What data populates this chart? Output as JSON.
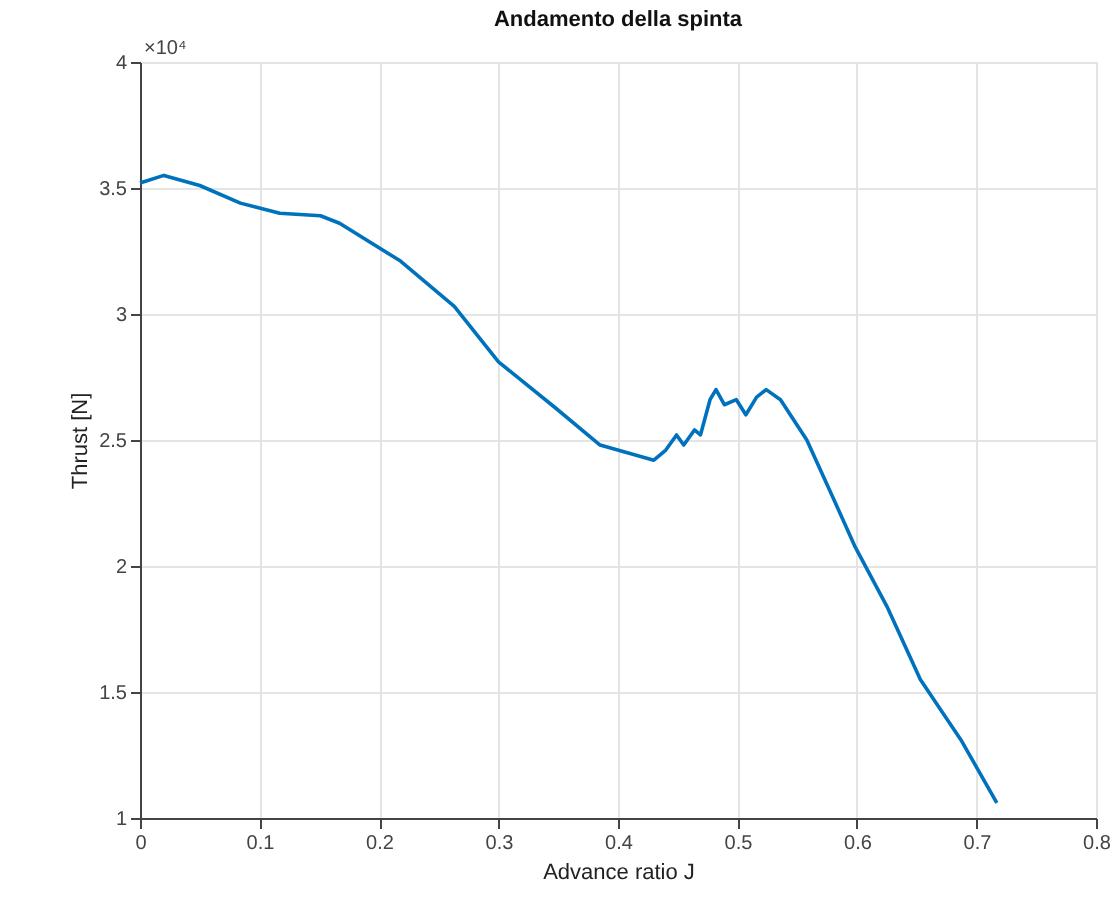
{
  "chart_data": {
    "type": "line",
    "title": "Andamento della spinta",
    "xlabel": "Advance ratio J",
    "ylabel": "Thrust [N]",
    "annotations": [
      "×10⁴"
    ],
    "x": [
      0,
      0.02,
      0.05,
      0.084,
      0.117,
      0.151,
      0.167,
      0.218,
      0.263,
      0.3,
      0.347,
      0.385,
      0.43,
      0.44,
      0.449,
      0.455,
      0.464,
      0.469,
      0.477,
      0.482,
      0.489,
      0.499,
      0.507,
      0.516,
      0.524,
      0.536,
      0.558,
      0.581,
      0.598,
      0.625,
      0.653,
      0.687,
      0.717
    ],
    "series": [
      {
        "color": "#0072bd",
        "values": [
          3.52,
          3.55,
          3.51,
          3.44,
          3.4,
          3.39,
          3.36,
          3.21,
          3.03,
          2.81,
          2.63,
          2.48,
          2.42,
          2.46,
          2.52,
          2.48,
          2.54,
          2.52,
          2.66,
          2.7,
          2.64,
          2.66,
          2.6,
          2.67,
          2.7,
          2.66,
          2.5,
          2.26,
          2.08,
          1.84,
          1.55,
          1.31,
          1.06
        ]
      }
    ],
    "xlim": [
      0,
      0.8
    ],
    "xticks": [
      0,
      0.1,
      0.2,
      0.3,
      0.4,
      0.5,
      0.6,
      0.7,
      0.8
    ],
    "ylim": [
      1,
      4
    ],
    "yticks": [
      1,
      1.5,
      2,
      2.5,
      3,
      3.5,
      4
    ],
    "grid": true,
    "marker": "none",
    "line_style": "solid"
  }
}
